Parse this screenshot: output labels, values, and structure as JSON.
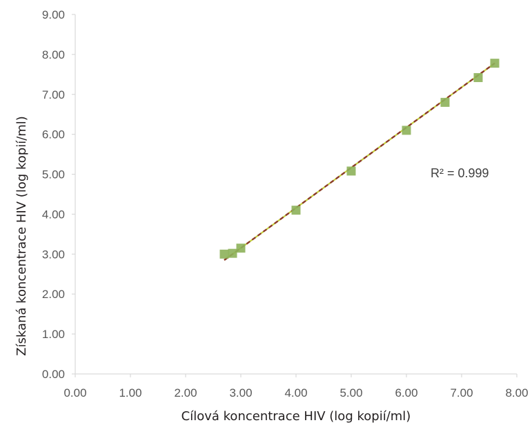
{
  "chart_data": {
    "type": "scatter",
    "xlabel": "Cílová koncentrace HIV (log kopií/ml)",
    "ylabel": "Získaná koncentrace HIV (log kopií/ml)",
    "xlim": [
      0,
      8
    ],
    "ylim": [
      0,
      9
    ],
    "x_ticks": [
      "0.00",
      "1.00",
      "2.00",
      "3.00",
      "4.00",
      "5.00",
      "6.00",
      "7.00",
      "8.00"
    ],
    "y_ticks": [
      "0.00",
      "1.00",
      "2.00",
      "3.00",
      "4.00",
      "5.00",
      "6.00",
      "7.00",
      "8.00",
      "9.00"
    ],
    "grid": false,
    "series": [
      {
        "points": [
          {
            "x": 2.7,
            "y": 3.0
          },
          {
            "x": 2.85,
            "y": 3.02
          },
          {
            "x": 3.0,
            "y": 3.15
          },
          {
            "x": 4.0,
            "y": 4.1
          },
          {
            "x": 5.0,
            "y": 5.08
          },
          {
            "x": 6.0,
            "y": 6.1
          },
          {
            "x": 6.7,
            "y": 6.8
          },
          {
            "x": 7.3,
            "y": 7.42
          },
          {
            "x": 7.6,
            "y": 7.78
          }
        ]
      }
    ],
    "trendline": {
      "x_start": 2.7,
      "x_end": 7.6,
      "y_start": 2.85,
      "y_end": 7.78
    },
    "annotation": "R² = 0.999",
    "colors": {
      "marker": "#8db15a",
      "trendline": "#8b3a2a",
      "trendline_alt": "#c3cf3e",
      "axis": "#d9d9d9"
    }
  }
}
